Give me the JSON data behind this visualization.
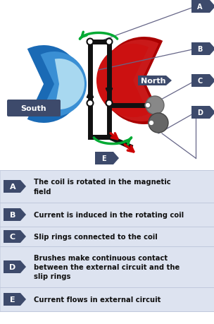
{
  "label_color": "#3d4a6b",
  "label_text_color": "#ffffff",
  "row_bg_color": "#dde3f0",
  "row_text_color": "#111111",
  "labels": [
    "A",
    "B",
    "C",
    "D",
    "E"
  ],
  "descriptions": [
    "The coil is rotated in the magnetic\nfield",
    "Current is induced in the rotating coil",
    "Slip rings connected to the coil",
    "Brushes make continuous contact\nbetween the external circuit and the\nslip rings",
    "Current flows in external circuit"
  ],
  "south_color_dark": "#1a6ab5",
  "south_color_mid": "#3a8fd4",
  "south_color_light": "#a8d8f0",
  "north_color_dark": "#aa0000",
  "north_color_mid": "#cc1111",
  "north_color_light": "#e86060",
  "green_color": "#00aa33",
  "red_arrow_color": "#cc0000",
  "black_color": "#111111",
  "gray_dark": "#666666",
  "gray_mid": "#888888",
  "gray_light": "#aaaaaa",
  "white": "#ffffff",
  "label_line_color": "#666688",
  "bg_color": "#ffffff",
  "north_bg": "#3d4a6b",
  "south_bg": "#3d4a6b"
}
